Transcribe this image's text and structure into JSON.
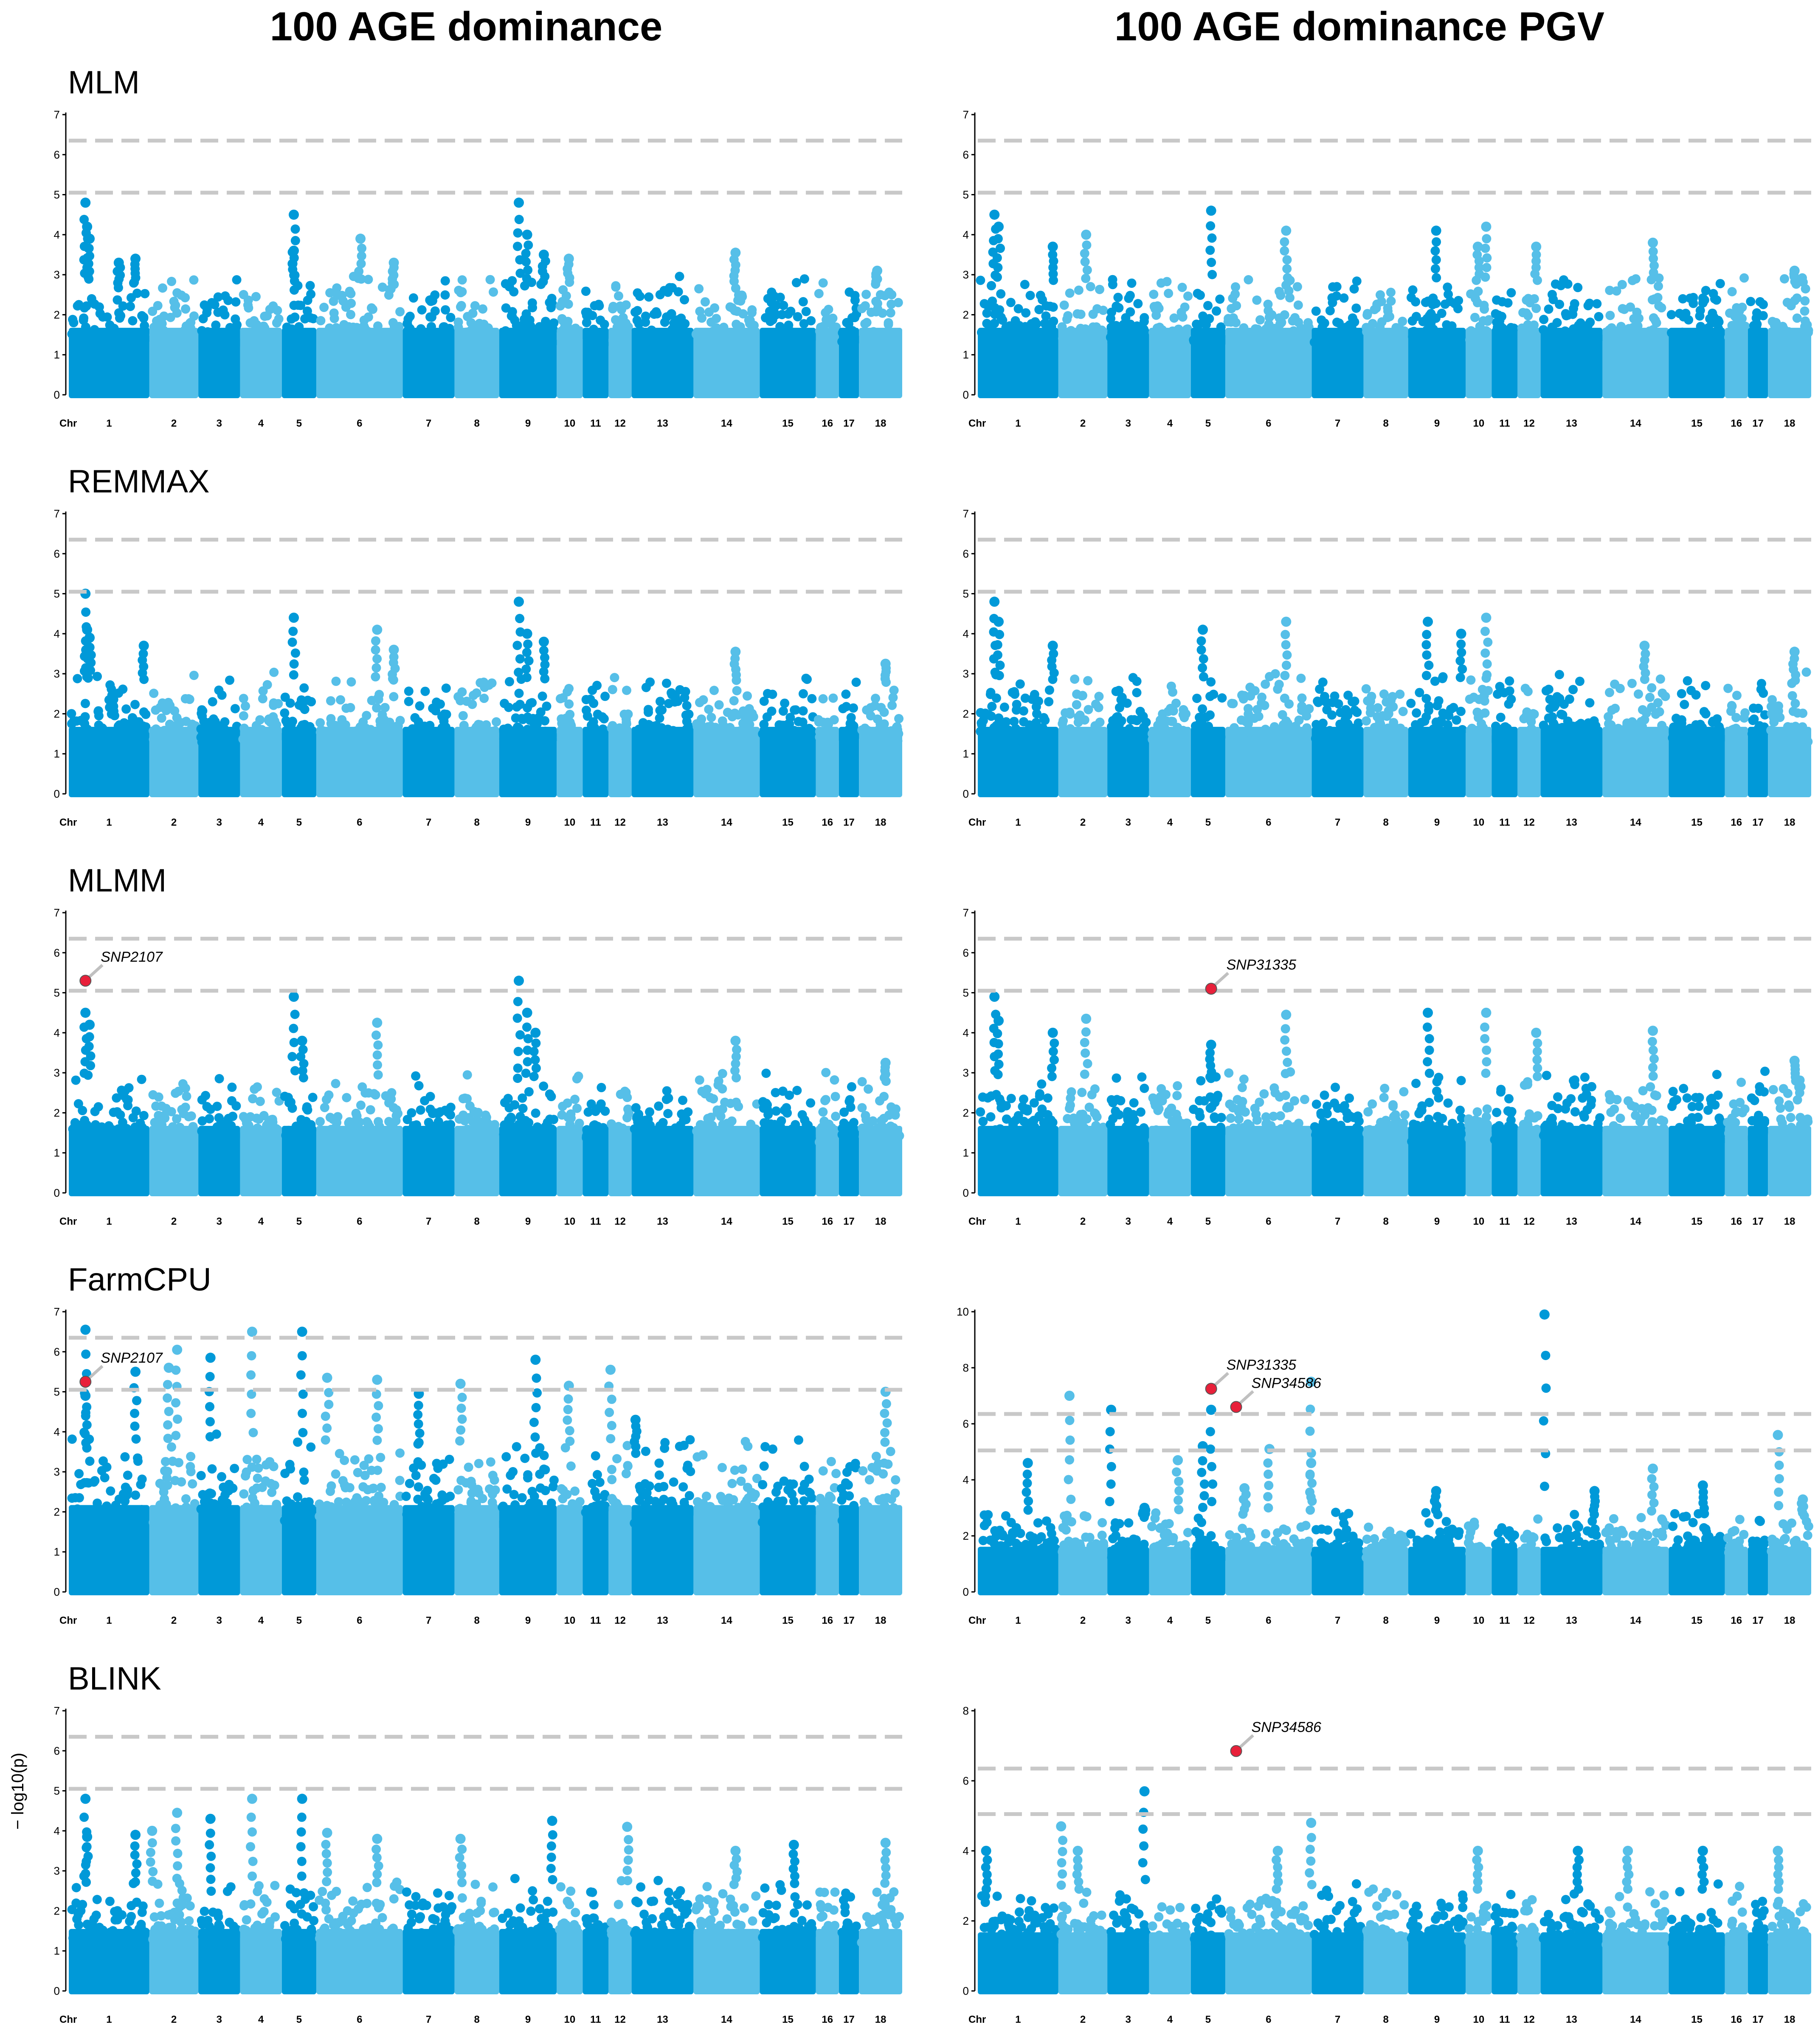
{
  "titles": {
    "left": "100 AGE dominance",
    "right": "100 AGE dominance PGV"
  },
  "y_axis_label": "− log10(p)",
  "colors": {
    "dark": "#0099d8",
    "light": "#56bfe8",
    "threshold": "#c8c8c8",
    "highlight": "#e8203a",
    "leader": "#c0c0c0"
  },
  "chromosomes": {
    "axis_label": "Chr",
    "labels": [
      "1",
      "2",
      "3",
      "4",
      "5",
      "6",
      "7",
      "8",
      "9",
      "10",
      "11",
      "12",
      "13",
      "14",
      "15",
      "16",
      "17",
      "18"
    ],
    "sizes": [
      56,
      34,
      29,
      29,
      24,
      60,
      36,
      31,
      40,
      18,
      18,
      16,
      43,
      46,
      39,
      16,
      14,
      30
    ]
  },
  "chart_data": [
    {
      "type": "scatter",
      "name": "MLM",
      "title": "MLM",
      "column": "left",
      "ylim": [
        0,
        7
      ],
      "yticks": [
        0,
        1,
        2,
        3,
        4,
        5,
        6,
        7
      ],
      "thresholds": [
        5.05,
        6.35
      ],
      "base_peak": 2.7,
      "peaks": [
        [
          0.02,
          4.8
        ],
        [
          0.022,
          4.2
        ],
        [
          0.025,
          3.9
        ],
        [
          0.06,
          3.3
        ],
        [
          0.08,
          3.4
        ],
        [
          0.27,
          4.5
        ],
        [
          0.27,
          3.6
        ],
        [
          0.35,
          3.9
        ],
        [
          0.39,
          3.3
        ],
        [
          0.54,
          4.8
        ],
        [
          0.55,
          4.0
        ],
        [
          0.57,
          3.5
        ],
        [
          0.6,
          3.4
        ],
        [
          0.8,
          3.55
        ],
        [
          0.97,
          3.1
        ]
      ],
      "highlights": []
    },
    {
      "type": "scatter",
      "name": "MLM",
      "title": "",
      "column": "right",
      "ylim": [
        0,
        7
      ],
      "yticks": [
        0,
        1,
        2,
        3,
        4,
        5,
        6,
        7
      ],
      "thresholds": [
        5.05,
        6.35
      ],
      "base_peak": 2.7,
      "peaks": [
        [
          0.02,
          4.5
        ],
        [
          0.025,
          4.2
        ],
        [
          0.09,
          3.7
        ],
        [
          0.13,
          4.0
        ],
        [
          0.28,
          4.6
        ],
        [
          0.37,
          4.1
        ],
        [
          0.55,
          4.1
        ],
        [
          0.6,
          3.7
        ],
        [
          0.61,
          4.2
        ],
        [
          0.67,
          3.7
        ],
        [
          0.81,
          3.8
        ],
        [
          0.98,
          3.1
        ]
      ],
      "highlights": []
    },
    {
      "type": "scatter",
      "name": "REMMAX",
      "title": "REMMAX",
      "column": "left",
      "ylim": [
        0,
        7
      ],
      "yticks": [
        0,
        1,
        2,
        3,
        4,
        5,
        6,
        7
      ],
      "thresholds": [
        5.05,
        6.35
      ],
      "base_peak": 2.7,
      "peaks": [
        [
          0.02,
          5.0
        ],
        [
          0.022,
          4.1
        ],
        [
          0.025,
          3.9
        ],
        [
          0.09,
          3.7
        ],
        [
          0.27,
          4.4
        ],
        [
          0.37,
          4.1
        ],
        [
          0.39,
          3.6
        ],
        [
          0.54,
          4.8
        ],
        [
          0.55,
          4.0
        ],
        [
          0.57,
          3.8
        ],
        [
          0.8,
          3.55
        ],
        [
          0.98,
          3.25
        ]
      ],
      "highlights": []
    },
    {
      "type": "scatter",
      "name": "REMMAX",
      "title": "",
      "column": "right",
      "ylim": [
        0,
        7
      ],
      "yticks": [
        0,
        1,
        2,
        3,
        4,
        5,
        6,
        7
      ],
      "thresholds": [
        5.05,
        6.35
      ],
      "base_peak": 2.7,
      "peaks": [
        [
          0.02,
          4.8
        ],
        [
          0.025,
          4.3
        ],
        [
          0.09,
          3.7
        ],
        [
          0.27,
          4.1
        ],
        [
          0.37,
          4.3
        ],
        [
          0.54,
          4.3
        ],
        [
          0.58,
          4.0
        ],
        [
          0.61,
          4.4
        ],
        [
          0.8,
          3.7
        ],
        [
          0.98,
          3.55
        ]
      ],
      "highlights": []
    },
    {
      "type": "scatter",
      "name": "MLMM",
      "title": "MLMM",
      "column": "left",
      "ylim": [
        0,
        7
      ],
      "yticks": [
        0,
        1,
        2,
        3,
        4,
        5,
        6,
        7
      ],
      "thresholds": [
        5.05,
        6.35
      ],
      "base_peak": 2.7,
      "peaks": [
        [
          0.02,
          4.5
        ],
        [
          0.025,
          4.2
        ],
        [
          0.27,
          4.9
        ],
        [
          0.28,
          3.8
        ],
        [
          0.37,
          4.25
        ],
        [
          0.54,
          5.3
        ],
        [
          0.55,
          4.5
        ],
        [
          0.56,
          4.0
        ],
        [
          0.8,
          3.8
        ],
        [
          0.98,
          3.25
        ]
      ],
      "highlights": [
        {
          "label": "SNP2107",
          "pos": 0.02,
          "y": 5.3
        }
      ]
    },
    {
      "type": "scatter",
      "name": "MLMM",
      "title": "",
      "column": "right",
      "ylim": [
        0,
        7
      ],
      "yticks": [
        0,
        1,
        2,
        3,
        4,
        5,
        6,
        7
      ],
      "thresholds": [
        5.05,
        6.35
      ],
      "base_peak": 2.7,
      "peaks": [
        [
          0.02,
          4.9
        ],
        [
          0.025,
          4.3
        ],
        [
          0.09,
          4.0
        ],
        [
          0.13,
          4.35
        ],
        [
          0.28,
          3.7
        ],
        [
          0.37,
          4.45
        ],
        [
          0.54,
          4.5
        ],
        [
          0.61,
          4.5
        ],
        [
          0.67,
          4.0
        ],
        [
          0.81,
          4.05
        ],
        [
          0.98,
          3.3
        ]
      ],
      "highlights": [
        {
          "label": "SNP31335",
          "pos": 0.28,
          "y": 5.1
        }
      ]
    },
    {
      "type": "scatter",
      "name": "FarmCPU",
      "title": "FarmCPU",
      "column": "left",
      "ylim": [
        0,
        7
      ],
      "yticks": [
        0,
        1,
        2,
        3,
        4,
        5,
        6,
        7
      ],
      "thresholds": [
        5.05,
        6.35
      ],
      "base_peak": 3.5,
      "peaks": [
        [
          0.02,
          6.55
        ],
        [
          0.02,
          4.9
        ],
        [
          0.08,
          5.5
        ],
        [
          0.12,
          5.6
        ],
        [
          0.13,
          6.05
        ],
        [
          0.17,
          5.85
        ],
        [
          0.22,
          6.5
        ],
        [
          0.28,
          6.5
        ],
        [
          0.31,
          5.35
        ],
        [
          0.37,
          5.3
        ],
        [
          0.42,
          4.95
        ],
        [
          0.47,
          5.2
        ],
        [
          0.56,
          5.8
        ],
        [
          0.6,
          5.15
        ],
        [
          0.65,
          5.55
        ],
        [
          0.68,
          4.3
        ],
        [
          0.98,
          5.0
        ]
      ],
      "highlights": [
        {
          "label": "SNP2107",
          "pos": 0.02,
          "y": 5.25
        }
      ]
    },
    {
      "type": "scatter",
      "name": "FarmCPU",
      "title": "",
      "column": "right",
      "ylim": [
        0,
        10
      ],
      "yticks": [
        0,
        2,
        4,
        6,
        8,
        10
      ],
      "thresholds": [
        5.05,
        6.35
      ],
      "base_peak": 2.6,
      "peaks": [
        [
          0.06,
          4.6
        ],
        [
          0.11,
          7.0
        ],
        [
          0.16,
          6.5
        ],
        [
          0.2,
          3.0
        ],
        [
          0.24,
          4.7
        ],
        [
          0.27,
          5.2
        ],
        [
          0.28,
          6.5
        ],
        [
          0.32,
          3.7
        ],
        [
          0.35,
          5.1
        ],
        [
          0.4,
          7.5
        ],
        [
          0.4,
          4.6
        ],
        [
          0.55,
          3.6
        ],
        [
          0.68,
          9.9
        ],
        [
          0.74,
          3.6
        ],
        [
          0.81,
          4.4
        ],
        [
          0.87,
          3.8
        ],
        [
          0.96,
          5.6
        ],
        [
          0.99,
          3.3
        ]
      ],
      "highlights": [
        {
          "label": "SNP31335",
          "pos": 0.28,
          "y": 7.25
        },
        {
          "label": "SNP34586",
          "pos": 0.31,
          "y": 6.6
        }
      ]
    },
    {
      "type": "scatter",
      "name": "BLINK",
      "title": "BLINK",
      "column": "left",
      "ylim": [
        0,
        7
      ],
      "yticks": [
        0,
        1,
        2,
        3,
        4,
        5,
        6,
        7
      ],
      "thresholds": [
        5.05,
        6.35
      ],
      "base_peak": 2.5,
      "peaks": [
        [
          0.02,
          4.8
        ],
        [
          0.022,
          3.85
        ],
        [
          0.08,
          3.9
        ],
        [
          0.1,
          4.0
        ],
        [
          0.13,
          4.45
        ],
        [
          0.17,
          4.3
        ],
        [
          0.22,
          4.8
        ],
        [
          0.28,
          4.8
        ],
        [
          0.31,
          3.95
        ],
        [
          0.37,
          3.8
        ],
        [
          0.47,
          3.8
        ],
        [
          0.58,
          4.25
        ],
        [
          0.67,
          4.1
        ],
        [
          0.8,
          3.5
        ],
        [
          0.87,
          3.65
        ],
        [
          0.98,
          3.7
        ]
      ],
      "highlights": []
    },
    {
      "type": "scatter",
      "name": "BLINK",
      "title": "",
      "column": "right",
      "ylim": [
        0,
        8
      ],
      "yticks": [
        0,
        2,
        4,
        6,
        8
      ],
      "thresholds": [
        6.35,
        5.05
      ],
      "base_peak": 2.7,
      "peaks": [
        [
          0.01,
          4.0
        ],
        [
          0.1,
          4.7
        ],
        [
          0.12,
          4.0
        ],
        [
          0.2,
          5.7
        ],
        [
          0.36,
          4.0
        ],
        [
          0.4,
          4.8
        ],
        [
          0.6,
          4.0
        ],
        [
          0.72,
          4.0
        ],
        [
          0.78,
          4.0
        ],
        [
          0.87,
          4.0
        ],
        [
          0.96,
          4.0
        ]
      ],
      "highlights": [
        {
          "label": "SNP34586",
          "pos": 0.31,
          "y": 6.85
        }
      ]
    }
  ]
}
